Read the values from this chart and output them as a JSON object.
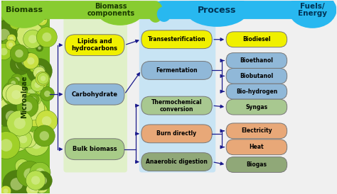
{
  "bg_color": "#f0f0f0",
  "title_biomass": "Biomass",
  "title_components": "Biomass\ncomponents",
  "title_process": "Process",
  "title_fuels": "Fuels/\nEnergy",
  "label_microalgae": "Microalgae",
  "biomass_components": [
    {
      "label": "Lipids and\nhydrocarbons",
      "color": "#f0f000",
      "text_color": "#000000"
    },
    {
      "label": "Carbohydrate",
      "color": "#90b8d8",
      "text_color": "#000000"
    },
    {
      "label": "Bulk biomass",
      "color": "#a8cc88",
      "text_color": "#000000"
    }
  ],
  "processes": [
    {
      "label": "Transesterification",
      "color": "#f0f000",
      "text_color": "#000000"
    },
    {
      "label": "Fermentation",
      "color": "#90b8d8",
      "text_color": "#000000"
    },
    {
      "label": "Thermochemical\nconversion",
      "color": "#a8c890",
      "text_color": "#000000"
    },
    {
      "label": "Burn directly",
      "color": "#e8a878",
      "text_color": "#000000"
    },
    {
      "label": "Anaerobic digestion",
      "color": "#90a878",
      "text_color": "#000000"
    }
  ],
  "fuels": [
    {
      "label": "Biodiesel",
      "color": "#f0f000",
      "text_color": "#000000"
    },
    {
      "label": "Bioethanol",
      "color": "#90b8d8",
      "text_color": "#000000"
    },
    {
      "label": "Biobutanol",
      "color": "#90b8d8",
      "text_color": "#000000"
    },
    {
      "label": "Bio-hydrogen",
      "color": "#90b8d8",
      "text_color": "#000000"
    },
    {
      "label": "Syngas",
      "color": "#a8c890",
      "text_color": "#000000"
    },
    {
      "label": "Electricity",
      "color": "#e8a878",
      "text_color": "#000000"
    },
    {
      "label": "Heat",
      "color": "#e8a878",
      "text_color": "#000000"
    },
    {
      "label": "Biogas",
      "color": "#90a878",
      "text_color": "#000000"
    }
  ],
  "arrow_color": "#1a1a8c",
  "green_header": "#88cc30",
  "blue_header": "#28b8f0",
  "algae_colors": [
    "#90c830",
    "#b8e050",
    "#70a818",
    "#d0e870",
    "#508010",
    "#c8e040",
    "#a0d028"
  ],
  "col_comp_bg": "#e0f0c8",
  "col_proc_bg": "#c8e4f4"
}
